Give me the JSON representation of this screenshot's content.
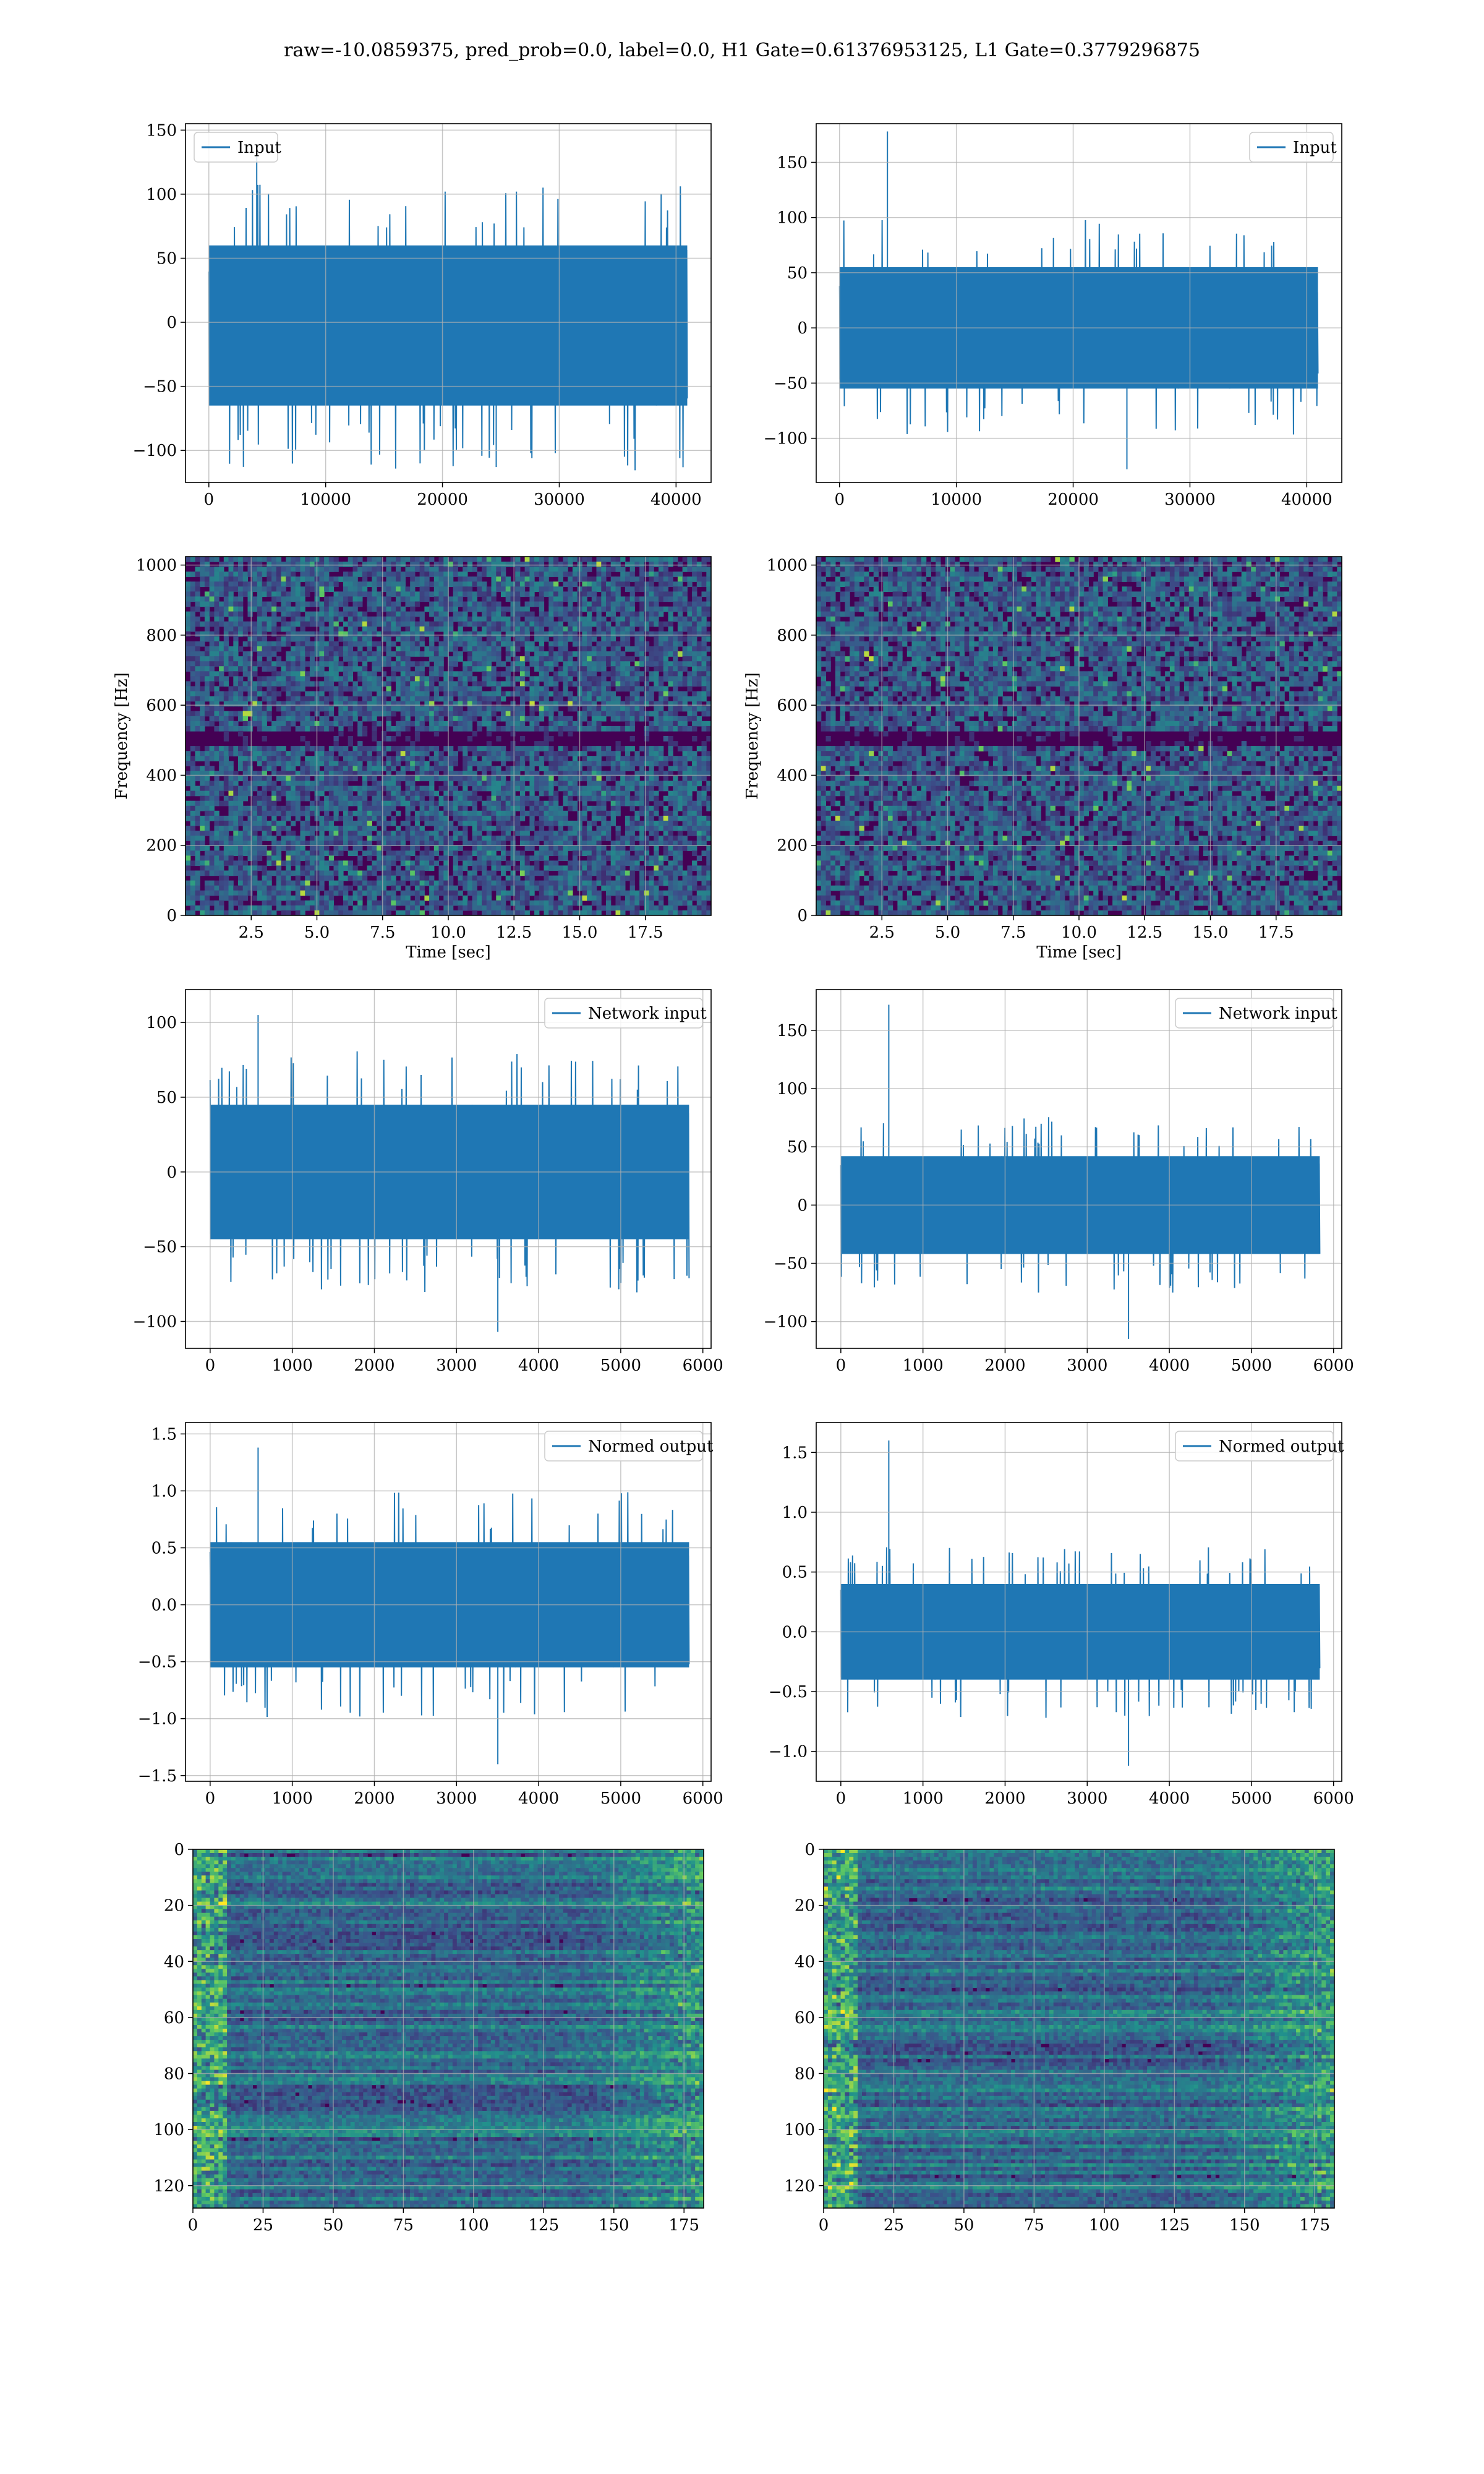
{
  "title": "raw=-10.0859375, pred_prob=0.0, label=0.0, H1 Gate=0.61376953125, L1 Gate=0.3779296875",
  "colors": {
    "line": "#1f77b4",
    "grid": "#b0b0b0",
    "viridis_dark": "#440154",
    "viridis_mid": "#21918c",
    "viridis_bright": "#fde725"
  },
  "chart_data": [
    {
      "id": "h1-input",
      "type": "line",
      "legend": "Input",
      "legend_loc": "upper-left",
      "xlim": [
        -2000,
        43000
      ],
      "ylim": [
        -125,
        155
      ],
      "xticks": [
        0,
        10000,
        20000,
        30000,
        40000
      ],
      "yticks": [
        -100,
        -50,
        0,
        50,
        100,
        150
      ],
      "xtick_labels": [
        "0",
        "10000",
        "20000",
        "30000",
        "40000"
      ],
      "ytick_labels": [
        "−100",
        "−50",
        "0",
        "50",
        "100",
        "150"
      ],
      "series": {
        "x_range": [
          0,
          40960
        ],
        "band": [
          -65,
          60
        ],
        "peak_max": 135,
        "peak_min": -113
      }
    },
    {
      "id": "l1-input",
      "type": "line",
      "legend": "Input",
      "legend_loc": "upper-right",
      "xlim": [
        -2000,
        43000
      ],
      "ylim": [
        -140,
        185
      ],
      "xticks": [
        0,
        10000,
        20000,
        30000,
        40000
      ],
      "yticks": [
        -100,
        -50,
        0,
        50,
        100,
        150
      ],
      "xtick_labels": [
        "0",
        "10000",
        "20000",
        "30000",
        "40000"
      ],
      "ytick_labels": [
        "−100",
        "−50",
        "0",
        "50",
        "100",
        "150"
      ],
      "series": {
        "x_range": [
          0,
          40960
        ],
        "band": [
          -55,
          55
        ],
        "peak_max": 178,
        "peak_min": -128
      }
    },
    {
      "id": "h1-spectrogram",
      "type": "heatmap",
      "xlabel": "Time [sec]",
      "ylabel": "Frequency [Hz]",
      "xlim": [
        0,
        20
      ],
      "ylim": [
        0,
        1024
      ],
      "xticks": [
        2.5,
        5.0,
        7.5,
        10.0,
        12.5,
        15.0,
        17.5
      ],
      "yticks": [
        0,
        200,
        400,
        600,
        800,
        1000
      ],
      "xtick_labels": [
        "2.5",
        "5.0",
        "7.5",
        "10.0",
        "12.5",
        "15.0",
        "17.5"
      ],
      "ytick_labels": [
        "0",
        "200",
        "400",
        "600",
        "800",
        "1000"
      ]
    },
    {
      "id": "l1-spectrogram",
      "type": "heatmap",
      "xlabel": "Time [sec]",
      "ylabel": "Frequency [Hz]",
      "xlim": [
        0,
        20
      ],
      "ylim": [
        0,
        1024
      ],
      "xticks": [
        2.5,
        5.0,
        7.5,
        10.0,
        12.5,
        15.0,
        17.5
      ],
      "yticks": [
        0,
        200,
        400,
        600,
        800,
        1000
      ],
      "xtick_labels": [
        "2.5",
        "5.0",
        "7.5",
        "10.0",
        "12.5",
        "15.0",
        "17.5"
      ],
      "ytick_labels": [
        "0",
        "200",
        "400",
        "600",
        "800",
        "1000"
      ]
    },
    {
      "id": "h1-network-input",
      "type": "line",
      "legend": "Network input",
      "legend_loc": "upper-right",
      "xlim": [
        -300,
        6100
      ],
      "ylim": [
        -118,
        122
      ],
      "xticks": [
        0,
        1000,
        2000,
        3000,
        4000,
        5000,
        6000
      ],
      "yticks": [
        -100,
        -50,
        0,
        50,
        100
      ],
      "xtick_labels": [
        "0",
        "1000",
        "2000",
        "3000",
        "4000",
        "5000",
        "6000"
      ],
      "ytick_labels": [
        "−100",
        "−50",
        "0",
        "50",
        "100"
      ],
      "series": {
        "x_range": [
          0,
          5832
        ],
        "band": [
          -45,
          45
        ],
        "peak_max": 105,
        "peak_min": -107
      }
    },
    {
      "id": "l1-network-input",
      "type": "line",
      "legend": "Network input",
      "legend_loc": "upper-right",
      "xlim": [
        -300,
        6100
      ],
      "ylim": [
        -123,
        185
      ],
      "xticks": [
        0,
        1000,
        2000,
        3000,
        4000,
        5000,
        6000
      ],
      "yticks": [
        -100,
        -50,
        0,
        50,
        100,
        150
      ],
      "xtick_labels": [
        "0",
        "1000",
        "2000",
        "3000",
        "4000",
        "5000",
        "6000"
      ],
      "ytick_labels": [
        "−100",
        "−50",
        "0",
        "50",
        "100",
        "150"
      ],
      "series": {
        "x_range": [
          0,
          5832
        ],
        "band": [
          -42,
          42
        ],
        "peak_max": 172,
        "peak_min": -115
      }
    },
    {
      "id": "h1-normed-output",
      "type": "line",
      "legend": "Normed output",
      "legend_loc": "upper-right",
      "xlim": [
        -300,
        6100
      ],
      "ylim": [
        -1.55,
        1.6
      ],
      "xticks": [
        0,
        1000,
        2000,
        3000,
        4000,
        5000,
        6000
      ],
      "yticks": [
        -1.5,
        -1.0,
        -0.5,
        0.0,
        0.5,
        1.0,
        1.5
      ],
      "xtick_labels": [
        "0",
        "1000",
        "2000",
        "3000",
        "4000",
        "5000",
        "6000"
      ],
      "ytick_labels": [
        "−1.5",
        "−1.0",
        "−0.5",
        "0.0",
        "0.5",
        "1.0",
        "1.5"
      ],
      "series": {
        "x_range": [
          0,
          5832
        ],
        "band": [
          -0.55,
          0.55
        ],
        "peak_max": 1.38,
        "peak_min": -1.4
      }
    },
    {
      "id": "l1-normed-output",
      "type": "line",
      "legend": "Normed output",
      "legend_loc": "upper-right",
      "xlim": [
        -300,
        6100
      ],
      "ylim": [
        -1.25,
        1.75
      ],
      "xticks": [
        0,
        1000,
        2000,
        3000,
        4000,
        5000,
        6000
      ],
      "yticks": [
        -1.0,
        -0.5,
        0.0,
        0.5,
        1.0,
        1.5
      ],
      "xtick_labels": [
        "0",
        "1000",
        "2000",
        "3000",
        "4000",
        "5000",
        "6000"
      ],
      "ytick_labels": [
        "−1.0",
        "−0.5",
        "0.0",
        "0.5",
        "1.0",
        "1.5"
      ],
      "series": {
        "x_range": [
          0,
          5832
        ],
        "band": [
          -0.4,
          0.4
        ],
        "peak_max": 1.6,
        "peak_min": -1.12
      }
    },
    {
      "id": "h1-feature-map",
      "type": "heatmap",
      "xlim": [
        0,
        182
      ],
      "ylim": [
        128,
        0
      ],
      "ylim_inverted": true,
      "xticks": [
        0,
        25,
        50,
        75,
        100,
        125,
        150,
        175
      ],
      "yticks": [
        0,
        20,
        40,
        60,
        80,
        100,
        120
      ],
      "xtick_labels": [
        "0",
        "25",
        "50",
        "75",
        "100",
        "125",
        "150",
        "175"
      ],
      "ytick_labels": [
        "0",
        "20",
        "40",
        "60",
        "80",
        "100",
        "120"
      ]
    },
    {
      "id": "l1-feature-map",
      "type": "heatmap",
      "xlim": [
        0,
        182
      ],
      "ylim": [
        128,
        0
      ],
      "ylim_inverted": true,
      "xticks": [
        0,
        25,
        50,
        75,
        100,
        125,
        150,
        175
      ],
      "yticks": [
        0,
        20,
        40,
        60,
        80,
        100,
        120
      ],
      "xtick_labels": [
        "0",
        "25",
        "50",
        "75",
        "100",
        "125",
        "150",
        "175"
      ],
      "ytick_labels": [
        "0",
        "20",
        "40",
        "60",
        "80",
        "100",
        "120"
      ]
    }
  ]
}
